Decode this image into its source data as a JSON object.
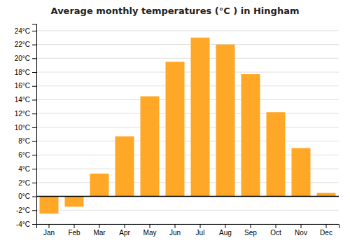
{
  "chart_data": {
    "type": "bar",
    "title": "Average monthly temperatures (°C ) in Hingham",
    "categories": [
      "Jan",
      "Feb",
      "Mar",
      "Apr",
      "May",
      "Jun",
      "Jul",
      "Aug",
      "Sep",
      "Oct",
      "Nov",
      "Dec"
    ],
    "values": [
      -2.5,
      -1.5,
      3.3,
      8.7,
      14.5,
      19.5,
      23.0,
      22.0,
      17.7,
      12.2,
      7.0,
      0.5
    ],
    "color": "#FFA726",
    "ylim": [
      -4,
      25
    ],
    "yticks": [
      {
        "value": -4,
        "label": "-4°C"
      },
      {
        "value": -2,
        "label": "-2°C"
      },
      {
        "value": 0,
        "label": "0°C"
      },
      {
        "value": 2,
        "label": "2°C"
      },
      {
        "value": 4,
        "label": "4°C"
      },
      {
        "value": 6,
        "label": "6°C"
      },
      {
        "value": 8,
        "label": "8°C"
      },
      {
        "value": 10,
        "label": "10°C"
      },
      {
        "value": 12,
        "label": "12°C"
      },
      {
        "value": 14,
        "label": "14°C"
      },
      {
        "value": 16,
        "label": "16°C"
      },
      {
        "value": 18,
        "label": "18°C"
      },
      {
        "value": 20,
        "label": "20°C"
      },
      {
        "value": 22,
        "label": "22°C"
      },
      {
        "value": 24,
        "label": "24°C"
      }
    ],
    "grid": true
  }
}
